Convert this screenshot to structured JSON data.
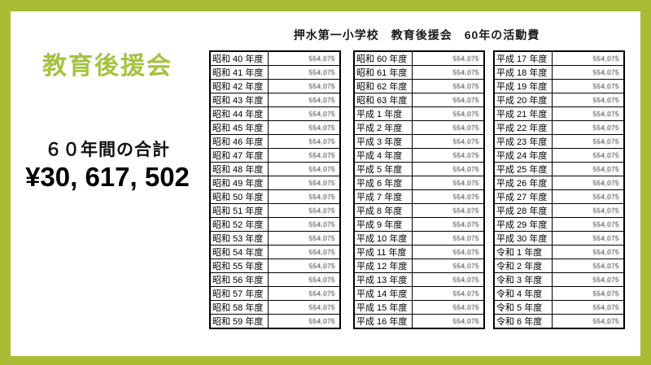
{
  "frame": {
    "border_color": "#a9bc33",
    "background": "#ffffff"
  },
  "header": {
    "title": "押水第一小学校　教育後援会　60年の活動費"
  },
  "left_panel": {
    "title": "教育後援会",
    "title_color": "#a5c340",
    "total_label": "６０年間の合計",
    "total_amount": "¥30, 617, 502"
  },
  "amount_display": "554,075",
  "tables": [
    {
      "rows": [
        "昭和 40 年度",
        "昭和 41 年度",
        "昭和 42 年度",
        "昭和 43 年度",
        "昭和 44 年度",
        "昭和 45 年度",
        "昭和 46 年度",
        "昭和 47 年度",
        "昭和 48 年度",
        "昭和 49 年度",
        "昭和 50 年度",
        "昭和 51 年度",
        "昭和 52 年度",
        "昭和 53 年度",
        "昭和 54 年度",
        "昭和 55 年度",
        "昭和 56 年度",
        "昭和 57 年度",
        "昭和 58 年度",
        "昭和 59 年度"
      ]
    },
    {
      "rows": [
        "昭和 60 年度",
        "昭和 61 年度",
        "昭和 62 年度",
        "昭和 63 年度",
        "平成 1 年度",
        "平成 2 年度",
        "平成 3 年度",
        "平成 4 年度",
        "平成 5 年度",
        "平成 6 年度",
        "平成 7 年度",
        "平成 8 年度",
        "平成 9 年度",
        "平成 10 年度",
        "平成 11 年度",
        "平成 12 年度",
        "平成 13 年度",
        "平成 14 年度",
        "平成 15 年度",
        "平成 16 年度"
      ]
    },
    {
      "rows": [
        "平成 17 年度",
        "平成 18 年度",
        "平成 19 年度",
        "平成 20 年度",
        "平成 21 年度",
        "平成 22 年度",
        "平成 23 年度",
        "平成 24 年度",
        "平成 25 年度",
        "平成 26 年度",
        "平成 27 年度",
        "平成 28 年度",
        "平成 29 年度",
        "平成 30 年度",
        "令和 1 年度",
        "令和 2 年度",
        "令和 3 年度",
        "令和 4 年度",
        "令和 5 年度",
        "令和 6 年度"
      ]
    }
  ]
}
